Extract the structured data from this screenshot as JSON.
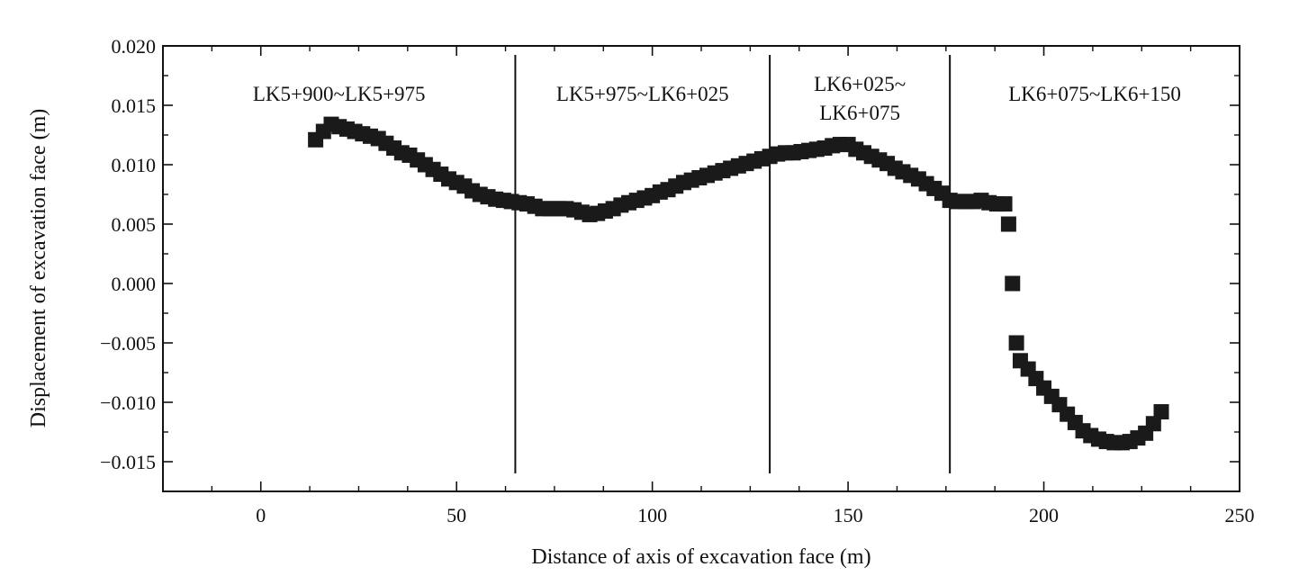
{
  "chart_data": {
    "type": "scatter",
    "title": "",
    "xlabel": "Distance of axis of excavation face (m)",
    "ylabel": "Displacement of excavation face (m)",
    "xlim": [
      -25,
      250
    ],
    "ylim": [
      -0.0175,
      0.02
    ],
    "xticks": [
      0,
      50,
      100,
      150,
      200,
      250
    ],
    "xtick_labels": [
      "0",
      "50",
      "100",
      "150",
      "200",
      "250"
    ],
    "yticks": [
      0.02,
      0.015,
      0.01,
      0.005,
      0.0,
      -0.005,
      -0.01,
      -0.015
    ],
    "ytick_labels": [
      "0.020",
      "0.015",
      "0.010",
      "0.005",
      "0.000",
      "−0.005",
      "−0.010",
      "−0.015"
    ],
    "grid": false,
    "marker": "square",
    "color": "#1a1a1a",
    "section_dividers": [
      65,
      130,
      176
    ],
    "sections": [
      {
        "lines": [
          "LK5+900~LK5+975"
        ]
      },
      {
        "lines": [
          "LK5+975~LK6+025"
        ]
      },
      {
        "lines": [
          "LK6+025~",
          "LK6+075"
        ]
      },
      {
        "lines": [
          "LK6+075~LK6+150"
        ]
      }
    ],
    "series": [
      {
        "x": [
          14,
          16,
          18,
          20,
          22,
          24,
          26,
          28,
          30,
          32,
          34,
          36,
          38,
          40,
          42,
          44,
          46,
          48,
          50,
          52,
          54,
          56,
          58,
          60,
          62,
          64,
          66,
          68,
          70,
          72,
          74,
          76,
          78,
          80,
          82,
          84,
          86,
          88,
          90,
          92,
          94,
          96,
          98,
          100,
          102,
          104,
          106,
          108,
          110,
          112,
          114,
          116,
          118,
          120,
          122,
          124,
          126,
          128,
          130,
          132,
          134,
          136,
          138,
          140,
          142,
          144,
          146,
          148,
          150,
          152,
          154,
          156,
          158,
          160,
          162,
          164,
          166,
          168,
          170,
          172,
          174,
          176,
          178,
          180,
          182,
          184,
          186,
          188,
          190,
          191,
          192,
          193,
          194,
          196,
          198,
          200,
          202,
          204,
          206,
          208,
          210,
          212,
          214,
          216,
          218,
          220,
          222,
          224,
          226,
          228,
          230
        ],
        "y": [
          0.0121,
          0.0128,
          0.0134,
          0.0132,
          0.013,
          0.0128,
          0.0126,
          0.0124,
          0.0122,
          0.0118,
          0.0114,
          0.011,
          0.0108,
          0.0104,
          0.01,
          0.0096,
          0.0092,
          0.0088,
          0.0085,
          0.0082,
          0.0078,
          0.0075,
          0.0073,
          0.0071,
          0.007,
          0.0069,
          0.0068,
          0.0067,
          0.0065,
          0.0063,
          0.0063,
          0.0063,
          0.0063,
          0.0062,
          0.006,
          0.0058,
          0.0059,
          0.0061,
          0.0063,
          0.0066,
          0.0068,
          0.007,
          0.0072,
          0.0074,
          0.0077,
          0.0079,
          0.0082,
          0.0085,
          0.0087,
          0.0089,
          0.0091,
          0.0093,
          0.0095,
          0.0097,
          0.0099,
          0.0101,
          0.0103,
          0.0105,
          0.0107,
          0.0109,
          0.011,
          0.011,
          0.0111,
          0.0112,
          0.0113,
          0.0114,
          0.0116,
          0.0117,
          0.0117,
          0.0113,
          0.011,
          0.0107,
          0.0104,
          0.0101,
          0.0097,
          0.0094,
          0.0091,
          0.0088,
          0.0084,
          0.008,
          0.0076,
          0.007,
          0.0069,
          0.0069,
          0.0069,
          0.007,
          0.0068,
          0.0067,
          0.0067,
          0.005,
          0.0,
          -0.005,
          -0.0065,
          -0.0072,
          -0.008,
          -0.0088,
          -0.0095,
          -0.0102,
          -0.011,
          -0.0117,
          -0.0124,
          -0.0128,
          -0.0131,
          -0.0133,
          -0.0134,
          -0.0134,
          -0.0133,
          -0.013,
          -0.0126,
          -0.0118,
          -0.0108
        ]
      }
    ]
  }
}
